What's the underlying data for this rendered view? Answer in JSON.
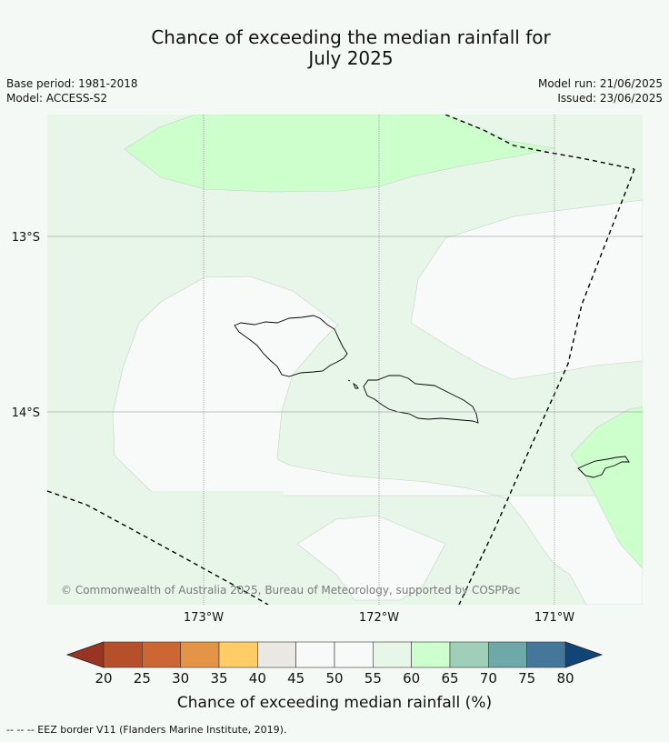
{
  "title": {
    "line1": "Chance of exceeding the median rainfall for",
    "line2": "July 2025"
  },
  "meta": {
    "base_period": "Base period: 1981-2018",
    "model": "Model: ACCESS-S2",
    "model_run": "Model run: 21/06/2025",
    "issued": "Issued: 23/06/2025"
  },
  "map": {
    "lat_labels": [
      "13°S",
      "14°S"
    ],
    "lon_labels": [
      "173°W",
      "172°W",
      "171°W"
    ],
    "copyright": "© Commonwealth of Australia 2025, Bureau of Meteorology, supported by COSPPac",
    "colors": {
      "band_50_55": "#f7faf8",
      "band_55_60": "#e8f5e9",
      "band_60_65": "#ccffcc",
      "eez_line": "#000000",
      "coastline": "#000000"
    }
  },
  "colorbar": {
    "ticks": [
      "20",
      "25",
      "30",
      "35",
      "40",
      "45",
      "50",
      "55",
      "60",
      "65",
      "70",
      "75",
      "80"
    ],
    "colors": [
      "#b5502a",
      "#cc6633",
      "#e39447",
      "#ffcc66",
      "#ebe8e4",
      "#f7faf8",
      "#f7faf8",
      "#e8f5e9",
      "#ccffcc",
      "#9fcfb9",
      "#6fa8a8",
      "#447799"
    ],
    "under_color": "#993322",
    "over_color": "#114477",
    "label": "Chance of exceeding median rainfall (%)"
  },
  "footnote": "-- -- -- EEZ border V11 (Flanders Marine Institute, 2019)."
}
